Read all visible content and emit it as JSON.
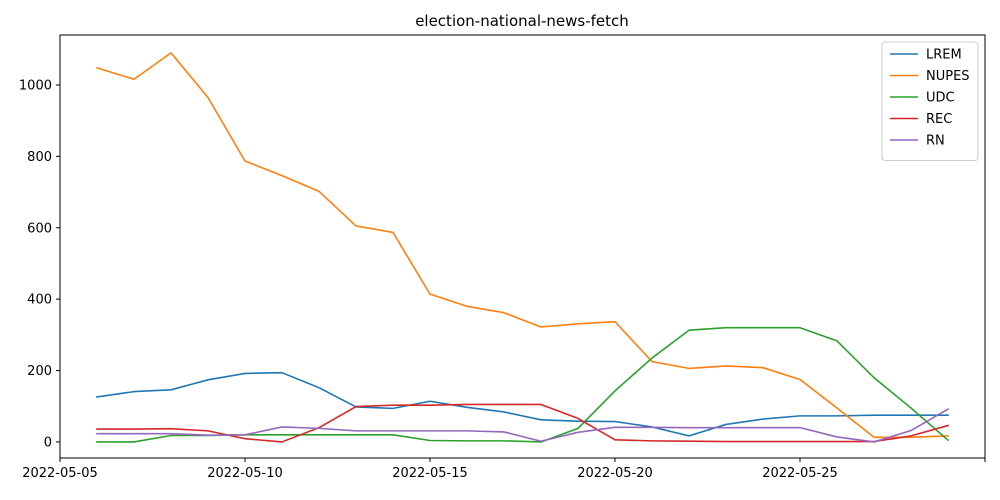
{
  "chart_data": {
    "type": "line",
    "title": "election-national-news-fetch",
    "xlabel": "",
    "ylabel": "",
    "x": [
      "2022-05-06",
      "2022-05-07",
      "2022-05-08",
      "2022-05-09",
      "2022-05-10",
      "2022-05-11",
      "2022-05-12",
      "2022-05-13",
      "2022-05-14",
      "2022-05-15",
      "2022-05-16",
      "2022-05-17",
      "2022-05-18",
      "2022-05-19",
      "2022-05-20",
      "2022-05-21",
      "2022-05-22",
      "2022-05-23",
      "2022-05-24",
      "2022-05-25",
      "2022-05-26",
      "2022-05-27",
      "2022-05-28",
      "2022-05-29"
    ],
    "xlim": [
      "2022-05-05",
      "2022-05-30"
    ],
    "xticks": [
      "2022-05-05",
      "2022-05-10",
      "2022-05-15",
      "2022-05-20",
      "2022-05-25",
      "2022-05-30"
    ],
    "xtick_labels": [
      "2022-05-05",
      "2022-05-10",
      "2022-05-15",
      "2022-05-20",
      "2022-05-25",
      ""
    ],
    "ylim": [
      -45,
      1140
    ],
    "yticks": [
      0,
      200,
      400,
      600,
      800,
      1000
    ],
    "ytick_labels": [
      "0",
      "200",
      "400",
      "600",
      "800",
      "1000"
    ],
    "grid": false,
    "legend_position": "top-right",
    "series": [
      {
        "name": "LREM",
        "color": "#1f77b4",
        "values": [
          126,
          141,
          146,
          174,
          192,
          194,
          152,
          98,
          94,
          114,
          97,
          84,
          62,
          58,
          57,
          42,
          17,
          49,
          64,
          73,
          73,
          75,
          75,
          75
        ]
      },
      {
        "name": "NUPES",
        "color": "#ff7f0e",
        "values": [
          1048,
          1016,
          1090,
          965,
          787,
          746,
          702,
          605,
          587,
          414,
          380,
          362,
          322,
          331,
          337,
          225,
          206,
          213,
          208,
          175,
          95,
          13,
          13,
          17
        ]
      },
      {
        "name": "UDC",
        "color": "#2ca02c",
        "values": [
          0,
          0,
          18,
          18,
          20,
          20,
          20,
          20,
          20,
          4,
          3,
          3,
          0,
          38,
          143,
          235,
          313,
          320,
          320,
          320,
          283,
          180,
          95,
          5
        ]
      },
      {
        "name": "REC",
        "color": "#d62728",
        "values": [
          36,
          36,
          37,
          31,
          9,
          0,
          40,
          99,
          103,
          103,
          105,
          105,
          105,
          66,
          6,
          3,
          2,
          1,
          1,
          1,
          1,
          1,
          17,
          46
        ]
      },
      {
        "name": "RN",
        "color": "#9467bd",
        "values": [
          23,
          23,
          23,
          19,
          20,
          42,
          38,
          31,
          31,
          31,
          31,
          28,
          2,
          27,
          41,
          41,
          40,
          40,
          40,
          40,
          14,
          0,
          32,
          92
        ]
      }
    ]
  }
}
